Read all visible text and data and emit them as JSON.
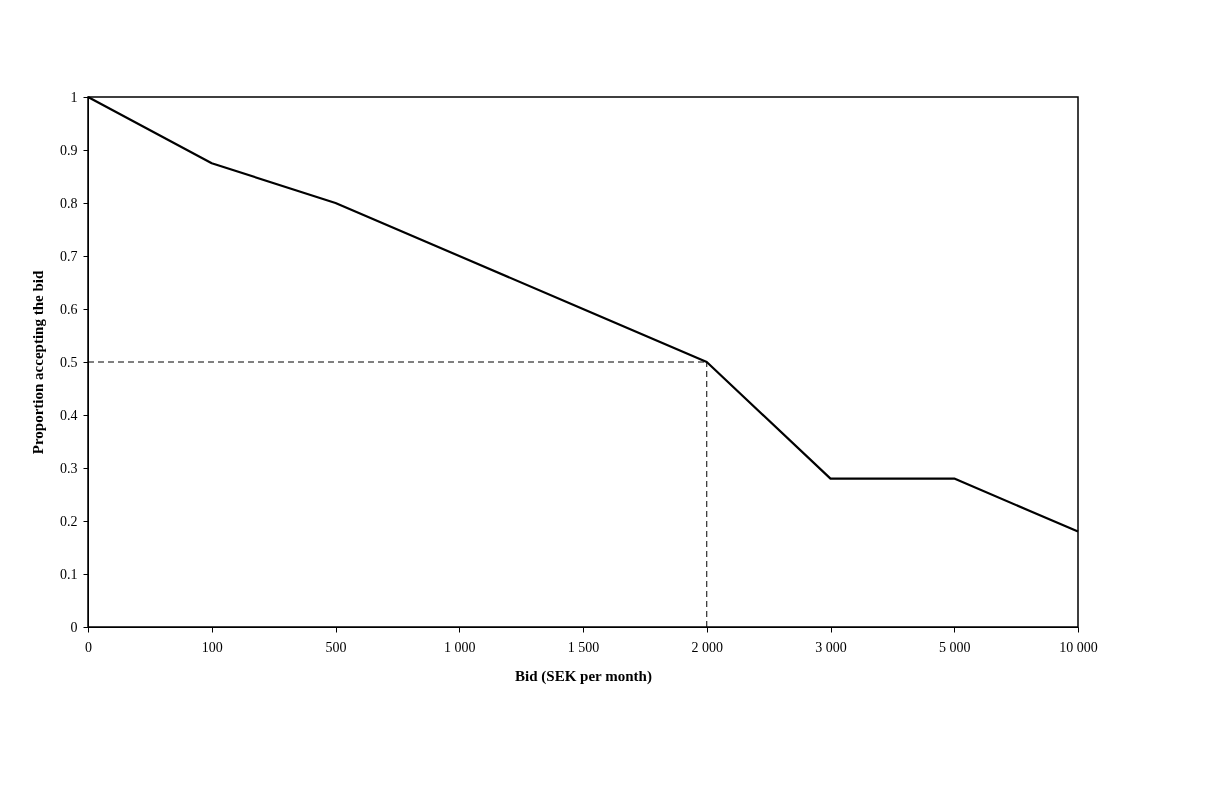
{
  "chart_data": {
    "type": "line",
    "xlabel": "Bid (SEK per month)",
    "ylabel": "Proportion accepting the bid",
    "categories": [
      "0",
      "100",
      "500",
      "1 000",
      "1 500",
      "2 000",
      "3 000",
      "5 000",
      "10 000"
    ],
    "series": [
      {
        "color": "#000000",
        "values": [
          1.0,
          0.875,
          0.8,
          0.7,
          0.6,
          0.5,
          0.28,
          0.28,
          0.18
        ]
      }
    ],
    "ylim": [
      0,
      1
    ],
    "yticks": [
      0,
      0.1,
      0.2,
      0.3,
      0.4,
      0.5,
      0.6,
      0.7,
      0.8,
      0.9,
      1
    ],
    "ref_lines": [
      {
        "axis": "y",
        "value": 0.5,
        "color": "#000000",
        "line_style": "dashed"
      },
      {
        "axis": "x",
        "value": "2 000",
        "color": "#000000",
        "line_style": "dashed"
      }
    ],
    "grid": false,
    "marker": "none",
    "line_style": "solid"
  }
}
